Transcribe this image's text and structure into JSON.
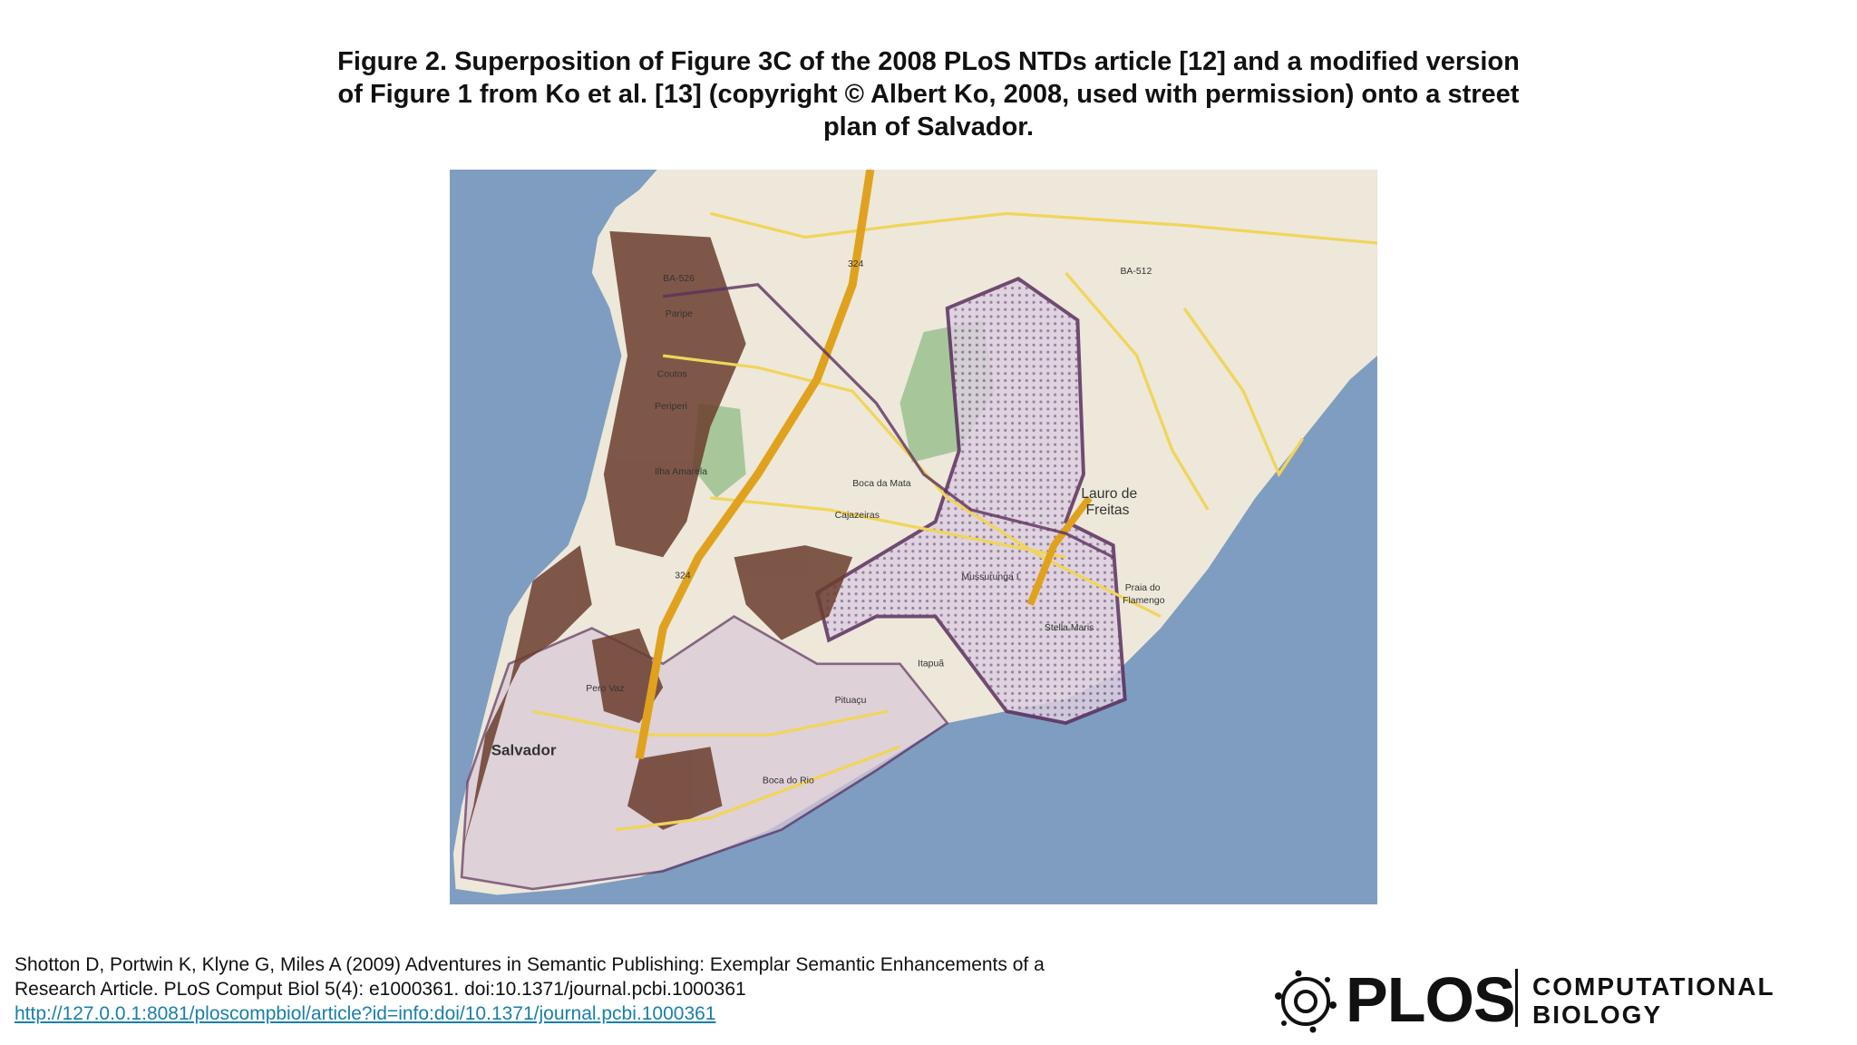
{
  "header": {
    "title_lines": [
      "Figure 2. Superposition of Figure 3C of the 2008 PLoS NTDs article [12] and a modified version",
      "of Figure 1 from Ko et al. [13] (copyright © Albert Ko, 2008, used with permission) onto a street",
      "plan of Salvador."
    ]
  },
  "map": {
    "labels": {
      "salvador": "Salvador",
      "lauro": "Lauro de",
      "freitas": "Freitas",
      "ba526": "BA-526",
      "ba512": "BA-512",
      "r324a": "324",
      "r324b": "324",
      "paripe": "Paripe",
      "coutos": "Coutos",
      "periperi": "Periperi",
      "ilha": "Ilha Amarela",
      "bocamata": "Boca da Mata",
      "cajazeiras": "Cajazeiras",
      "mussurunga": "Mussurunga I",
      "stella": "Stella Maris",
      "praia": "Praia do",
      "flamengo": "Flamengo",
      "itapua": "Itapuã",
      "pitucu": "Pituaçu",
      "bocario": "Boca do Rio",
      "perovaz": "Pero Vaz"
    }
  },
  "footer": {
    "citation_lines": [
      "Shotton D, Portwin K, Klyne G, Miles A (2009) Adventures in Semantic Publishing: Exemplar Semantic Enhancements of a",
      "Research Article. PLoS Comput Biol 5(4): e1000361. doi:10.1371/journal.pcbi.1000361"
    ],
    "link": "http://127.0.0.1:8081/ploscompbiol/article?id=info:doi/10.1371/journal.pcbi.1000361",
    "logo": {
      "name": "PLOS",
      "journal_lines": [
        "COMPUTATIONAL",
        "BIOLOGY"
      ]
    }
  }
}
